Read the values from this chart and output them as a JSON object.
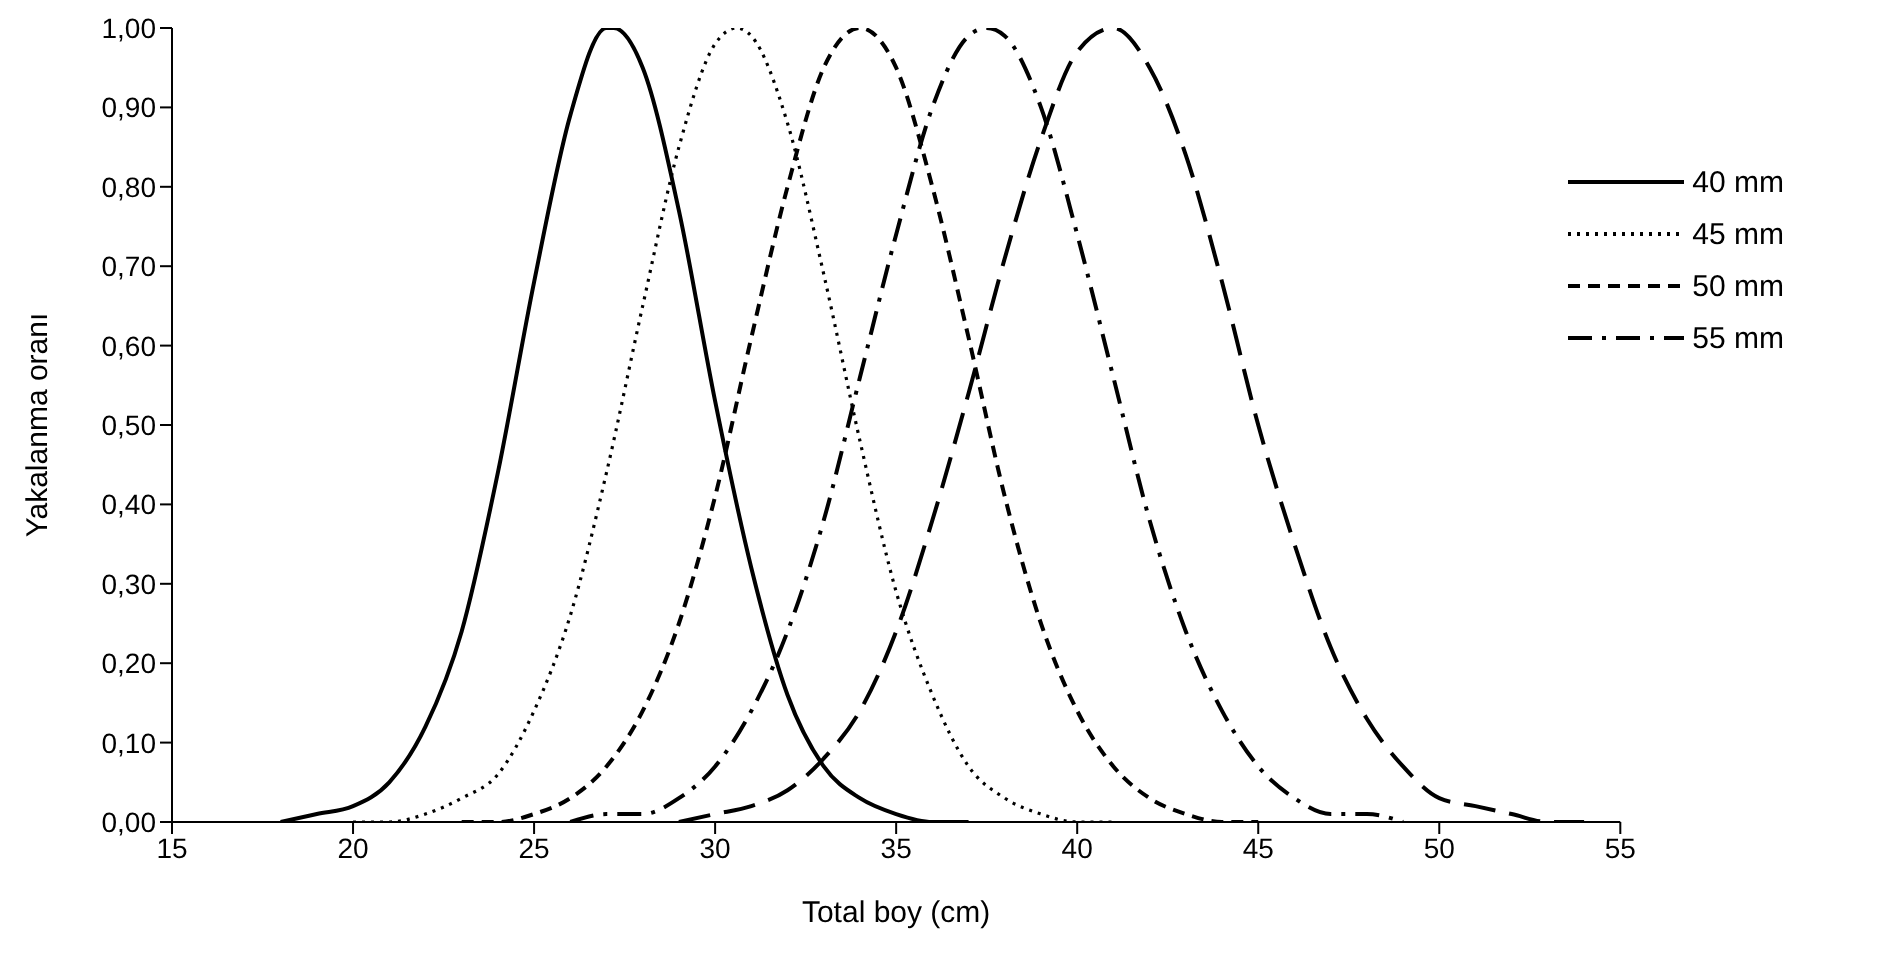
{
  "chart_data": {
    "type": "line",
    "xlabel": "Total boy (cm)",
    "ylabel": "Yakalanma oranı",
    "xlim": [
      15,
      55
    ],
    "xticks": [
      15,
      20,
      25,
      30,
      35,
      40,
      45,
      50,
      55
    ],
    "ylim": [
      0,
      1
    ],
    "yticks": [
      {
        "value": 0,
        "label": "0,00"
      },
      {
        "value": 0.1,
        "label": "0,10"
      },
      {
        "value": 0.2,
        "label": "0,20"
      },
      {
        "value": 0.3,
        "label": "0,30"
      },
      {
        "value": 0.4,
        "label": "0,40"
      },
      {
        "value": 0.5,
        "label": "0,50"
      },
      {
        "value": 0.6,
        "label": "0,60"
      },
      {
        "value": 0.7,
        "label": "0,70"
      },
      {
        "value": 0.8,
        "label": "0,80"
      },
      {
        "value": 0.9,
        "label": "0,90"
      },
      {
        "value": 1,
        "label": "1,00"
      }
    ],
    "grid": false,
    "legend": "top right",
    "marker": "none",
    "series": [
      {
        "name": "40 mm",
        "color": "#000000",
        "line_style": "solid",
        "x": [
          18,
          19,
          20,
          21,
          22,
          23,
          24,
          25,
          26,
          27,
          27.2,
          28,
          29,
          30,
          31,
          32,
          33,
          34,
          35,
          36,
          37
        ],
        "values": [
          0.0,
          0.01,
          0.02,
          0.05,
          0.12,
          0.24,
          0.44,
          0.68,
          0.89,
          1.0,
          1.0,
          0.95,
          0.77,
          0.53,
          0.32,
          0.16,
          0.07,
          0.03,
          0.01,
          0.0,
          0.0
        ]
      },
      {
        "name": "45 mm",
        "color": "#000000",
        "line_style": "dotted",
        "x": [
          20,
          21,
          22,
          23,
          24,
          25,
          26,
          27,
          28,
          29,
          30,
          30.6,
          31,
          32,
          33,
          34,
          35,
          36,
          37,
          38,
          39,
          40,
          41
        ],
        "values": [
          0.0,
          0.0,
          0.01,
          0.03,
          0.06,
          0.14,
          0.26,
          0.44,
          0.65,
          0.85,
          0.98,
          1.0,
          0.99,
          0.88,
          0.69,
          0.48,
          0.29,
          0.16,
          0.07,
          0.03,
          0.01,
          0.0,
          0.0
        ]
      },
      {
        "name": "50 mm",
        "color": "#000000",
        "line_style": "dashed",
        "x": [
          23,
          24,
          25,
          26,
          27,
          28,
          29,
          30,
          31,
          32,
          33,
          34,
          35,
          36,
          37,
          38,
          39,
          40,
          41,
          42,
          43,
          44,
          45
        ],
        "values": [
          0.0,
          0.0,
          0.01,
          0.03,
          0.07,
          0.14,
          0.25,
          0.41,
          0.61,
          0.8,
          0.95,
          1.0,
          0.95,
          0.8,
          0.61,
          0.41,
          0.25,
          0.14,
          0.07,
          0.03,
          0.01,
          0.0,
          0.0
        ]
      },
      {
        "name": "55 mm",
        "color": "#000000",
        "line_style": "dashdot",
        "x": [
          26,
          27,
          28,
          29,
          30,
          31,
          32,
          33,
          34,
          35,
          36,
          37,
          37.5,
          38,
          39,
          40,
          41,
          42,
          43,
          44,
          45,
          46,
          47,
          48,
          49
        ],
        "values": [
          0.0,
          0.01,
          0.01,
          0.03,
          0.07,
          0.14,
          0.24,
          0.38,
          0.56,
          0.74,
          0.9,
          0.99,
          1.0,
          0.99,
          0.9,
          0.74,
          0.56,
          0.38,
          0.24,
          0.14,
          0.07,
          0.03,
          0.01,
          0.01,
          0.0
        ]
      },
      {
        "color": "#000000",
        "line_style": "longdash",
        "x": [
          29,
          30,
          31,
          32,
          33,
          34,
          35,
          36,
          37,
          38,
          39,
          40,
          41,
          42,
          43,
          44,
          45,
          46,
          47,
          48,
          49,
          50,
          51,
          52,
          53,
          54
        ],
        "values": [
          0.0,
          0.01,
          0.02,
          0.04,
          0.08,
          0.14,
          0.24,
          0.38,
          0.54,
          0.71,
          0.86,
          0.97,
          1.0,
          0.95,
          0.84,
          0.68,
          0.5,
          0.35,
          0.22,
          0.13,
          0.07,
          0.03,
          0.02,
          0.01,
          0.0,
          0.0
        ]
      }
    ]
  }
}
